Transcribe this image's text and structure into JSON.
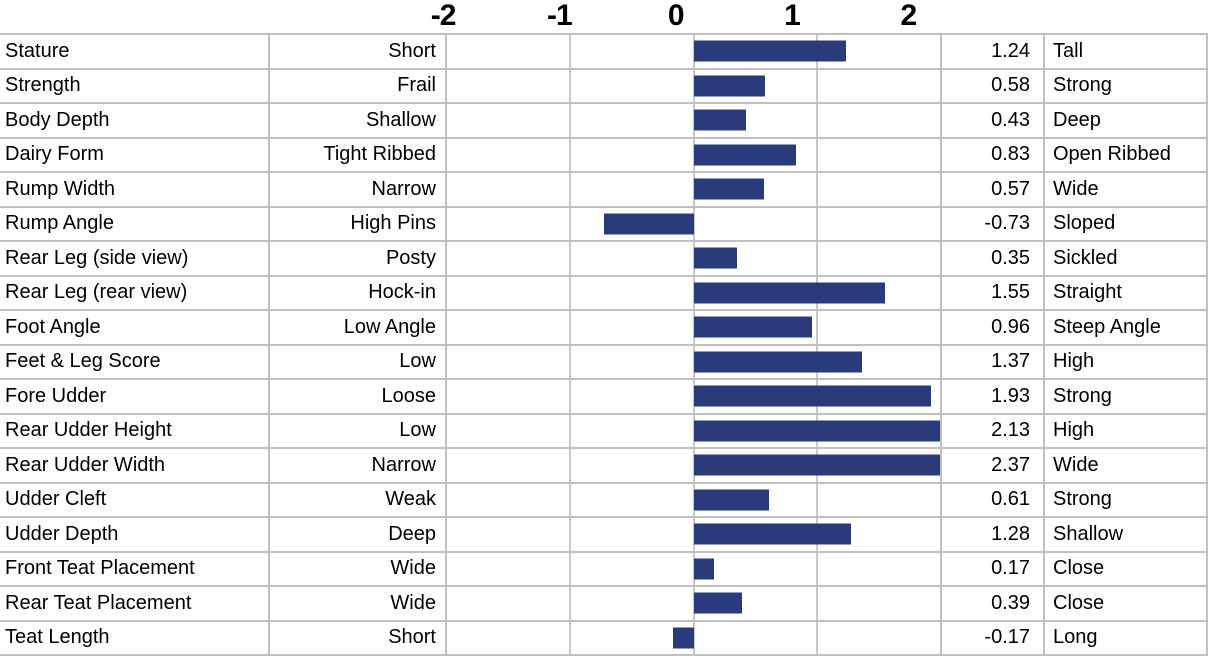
{
  "chart_data": {
    "type": "bar",
    "orientation": "horizontal",
    "title": "",
    "xlabel": "",
    "ylabel": "",
    "xlim": [
      -2,
      2
    ],
    "x_ticks": [
      "-2",
      "-1",
      "0",
      "1",
      "2"
    ],
    "grid": true,
    "bar_color": "#2a3b7c",
    "gridline_color": "#c9c9c9",
    "border_color": "#c0c0c0",
    "columns": [
      "trait",
      "low_descriptor",
      "bar",
      "value",
      "high_descriptor"
    ],
    "rows": [
      {
        "trait": "Stature",
        "low": "Short",
        "value": 1.24,
        "high": "Tall"
      },
      {
        "trait": "Strength",
        "low": "Frail",
        "value": 0.58,
        "high": "Strong"
      },
      {
        "trait": "Body Depth",
        "low": "Shallow",
        "value": 0.43,
        "high": "Deep"
      },
      {
        "trait": "Dairy Form",
        "low": "Tight Ribbed",
        "value": 0.83,
        "high": "Open Ribbed"
      },
      {
        "trait": "Rump Width",
        "low": "Narrow",
        "value": 0.57,
        "high": "Wide"
      },
      {
        "trait": "Rump Angle",
        "low": "High Pins",
        "value": -0.73,
        "high": "Sloped"
      },
      {
        "trait": "Rear Leg (side view)",
        "low": "Posty",
        "value": 0.35,
        "high": "Sickled"
      },
      {
        "trait": "Rear Leg (rear view)",
        "low": "Hock-in",
        "value": 1.55,
        "high": "Straight"
      },
      {
        "trait": "Foot Angle",
        "low": "Low Angle",
        "value": 0.96,
        "high": "Steep Angle"
      },
      {
        "trait": "Feet & Leg Score",
        "low": "Low",
        "value": 1.37,
        "high": "High"
      },
      {
        "trait": "Fore Udder",
        "low": "Loose",
        "value": 1.93,
        "high": "Strong"
      },
      {
        "trait": "Rear Udder Height",
        "low": "Low",
        "value": 2.13,
        "high": "High"
      },
      {
        "trait": "Rear Udder Width",
        "low": "Narrow",
        "value": 2.37,
        "high": "Wide"
      },
      {
        "trait": "Udder Cleft",
        "low": "Weak",
        "value": 0.61,
        "high": "Strong"
      },
      {
        "trait": "Udder Depth",
        "low": "Deep",
        "value": 1.28,
        "high": "Shallow"
      },
      {
        "trait": "Front Teat Placement",
        "low": "Wide",
        "value": 0.17,
        "high": "Close"
      },
      {
        "trait": "Rear Teat Placement",
        "low": "Wide",
        "value": 0.39,
        "high": "Close"
      },
      {
        "trait": "Teat Length",
        "low": "Short",
        "value": -0.17,
        "high": "Long"
      }
    ]
  }
}
